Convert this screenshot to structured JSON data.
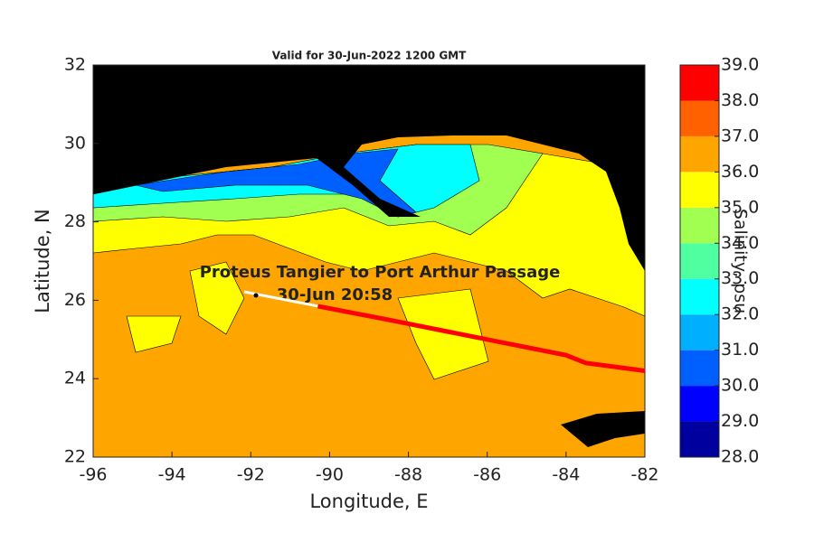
{
  "chart_data": {
    "type": "contour-map",
    "title": "Valid for 30-Jun-2022 1200 GMT",
    "x_label": "Longitude, E",
    "y_label": "Latitude, N",
    "xlim": [
      -96,
      -82
    ],
    "xticks": [
      -96,
      -94,
      -92,
      -90,
      -88,
      -86,
      -84,
      -82
    ],
    "ylim": [
      22,
      32
    ],
    "yticks": [
      22,
      24,
      26,
      28,
      30,
      32
    ],
    "annotations": [
      "Proteus Tangier to Port Arthur Passage",
      "30-Jun 20:58"
    ],
    "track": {
      "color": "#ff0000",
      "lon": [
        -90.3,
        -88.5,
        -87,
        -85.5,
        -84,
        -83.5,
        -82
      ],
      "lat": [
        25.85,
        25.5,
        25.2,
        24.9,
        24.6,
        24.4,
        24.2
      ]
    },
    "colorbar": {
      "label": "Salinity, psu",
      "lim": [
        28,
        39
      ],
      "ticks": [
        {
          "value": 28,
          "label": "28.0"
        },
        {
          "value": 29,
          "label": "29.0"
        },
        {
          "value": 30,
          "label": "30.0"
        },
        {
          "value": 31,
          "label": "31.0"
        },
        {
          "value": 32,
          "label": "32.0"
        },
        {
          "value": 33,
          "label": "33.0"
        },
        {
          "value": 34,
          "label": "34.0"
        },
        {
          "value": 35,
          "label": "35.0"
        },
        {
          "value": 36,
          "label": "36.0"
        },
        {
          "value": 37,
          "label": "37.0"
        },
        {
          "value": 38,
          "label": "38.0"
        },
        {
          "value": 39,
          "label": "39.0"
        }
      ],
      "colors": [
        "#00009f",
        "#0000ff",
        "#0060ff",
        "#00b0ff",
        "#00ffff",
        "#50ffa0",
        "#a0ff50",
        "#ffff00",
        "#ffa500",
        "#ff6000",
        "#ff0000"
      ]
    }
  }
}
